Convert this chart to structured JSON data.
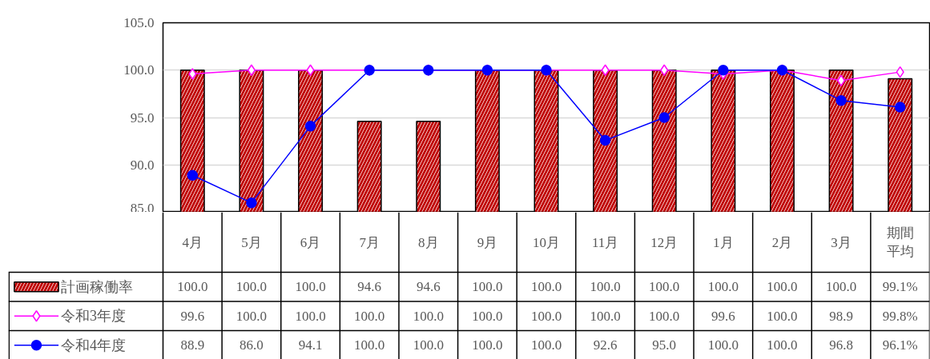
{
  "chart_data": {
    "type": "bar",
    "categories": [
      "4月",
      "5月",
      "6月",
      "7月",
      "8月",
      "9月",
      "10月",
      "11月",
      "12月",
      "1月",
      "2月",
      "3月",
      "期間平均"
    ],
    "series": [
      {
        "name": "計画稼働率",
        "color": "#c00000",
        "values": [
          100.0,
          100.0,
          100.0,
          94.6,
          94.6,
          100.0,
          100.0,
          100.0,
          100.0,
          100.0,
          100.0,
          100.0,
          99.1
        ],
        "value_labels": [
          "100.0",
          "100.0",
          "100.0",
          "94.6",
          "94.6",
          "100.0",
          "100.0",
          "100.0",
          "100.0",
          "100.0",
          "100.0",
          "100.0",
          "99.1%"
        ]
      },
      {
        "name": "令和3年度",
        "type": "line",
        "color": "#ff00ff",
        "marker": "diamond",
        "values": [
          99.6,
          100.0,
          100.0,
          100.0,
          100.0,
          100.0,
          100.0,
          100.0,
          100.0,
          99.6,
          100.0,
          98.9,
          99.8
        ],
        "value_labels": [
          "99.6",
          "100.0",
          "100.0",
          "100.0",
          "100.0",
          "100.0",
          "100.0",
          "100.0",
          "100.0",
          "99.6",
          "100.0",
          "98.9",
          "99.8%"
        ]
      },
      {
        "name": "令和4年度",
        "type": "line",
        "color": "#0000ff",
        "marker": "circle",
        "values": [
          88.9,
          86.0,
          94.1,
          100.0,
          100.0,
          100.0,
          100.0,
          92.6,
          95.0,
          100.0,
          100.0,
          96.8,
          96.1
        ],
        "value_labels": [
          "88.9",
          "86.0",
          "94.1",
          "100.0",
          "100.0",
          "100.0",
          "100.0",
          "92.6",
          "95.0",
          "100.0",
          "100.0",
          "96.8",
          "96.1%"
        ]
      }
    ],
    "ylim": [
      85,
      105
    ],
    "yticks": [
      {
        "value": 85,
        "label": "85.0"
      },
      {
        "value": 90,
        "label": "90.0"
      },
      {
        "value": 95,
        "label": "95.0"
      },
      {
        "value": 100,
        "label": "100.0"
      },
      {
        "value": 105,
        "label": "105.0"
      }
    ],
    "grid": "y",
    "legend": "bottom"
  }
}
